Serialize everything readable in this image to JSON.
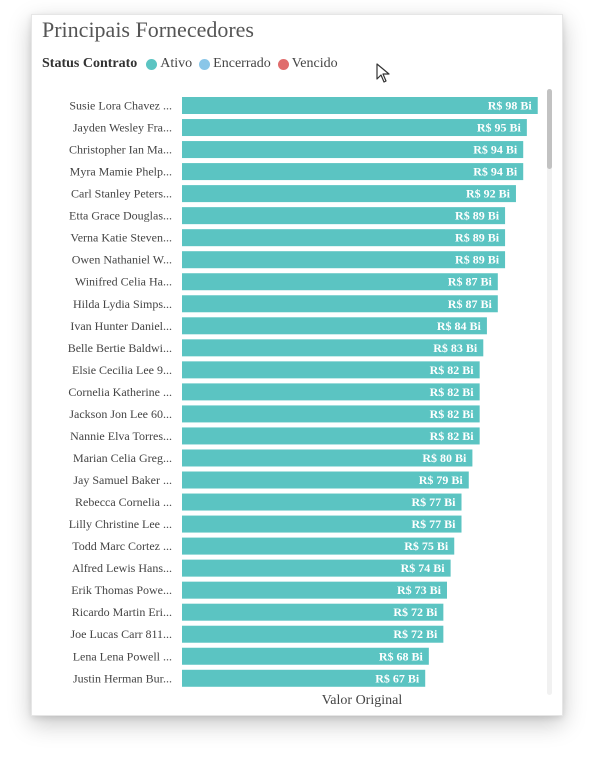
{
  "visual": {
    "title": "Principais Fornecedores",
    "legend": {
      "title": "Status Contrato",
      "items": [
        {
          "label": "Ativo",
          "color": "#5BC4C2"
        },
        {
          "label": "Encerrado",
          "color": "#8AC6E8"
        },
        {
          "label": "Vencido",
          "color": "#E06C6C"
        }
      ]
    }
  },
  "chart_data": {
    "type": "bar",
    "orientation": "horizontal",
    "title": "Principais Fornecedores",
    "xlabel": "Valor Original",
    "ylabel": "",
    "xlim": [
      0,
      100
    ],
    "grid": false,
    "legend_position": "top-left",
    "bar_color": "#5BC4C2",
    "categories": [
      "Susie Lora Chavez ...",
      "Jayden Wesley Fra...",
      "Christopher Ian Ma...",
      "Myra Mamie Phelp...",
      "Carl Stanley Peters...",
      "Etta Grace Douglas...",
      "Verna Katie Steven...",
      "Owen Nathaniel W...",
      "Winifred Celia Ha...",
      "Hilda Lydia Simps...",
      "Ivan Hunter Daniel...",
      "Belle Bertie Baldwi...",
      "Elsie Cecilia Lee 9...",
      "Cornelia Katherine ...",
      "Jackson Jon Lee 60...",
      "Nannie Elva Torres...",
      "Marian Celia Greg...",
      "Jay Samuel Baker ...",
      "Rebecca Cornelia ...",
      "Lilly Christine Lee ...",
      "Todd Marc Cortez ...",
      "Alfred Lewis Hans...",
      "Erik Thomas Powe...",
      "Ricardo Martin Eri...",
      "Joe Lucas Carr 811...",
      "Lena Lena Powell ...",
      "Justin Herman Bur..."
    ],
    "series": [
      {
        "name": "Ativo",
        "values": [
          98,
          95,
          94,
          94,
          92,
          89,
          89,
          89,
          87,
          87,
          84,
          83,
          82,
          82,
          82,
          82,
          80,
          79,
          77,
          77,
          75,
          74,
          73,
          72,
          72,
          68,
          67
        ],
        "data_labels": [
          "R$ 98 Bi",
          "R$ 95 Bi",
          "R$ 94 Bi",
          "R$ 94 Bi",
          "R$ 92 Bi",
          "R$ 89 Bi",
          "R$ 89 Bi",
          "R$ 89 Bi",
          "R$ 87 Bi",
          "R$ 87 Bi",
          "R$ 84 Bi",
          "R$ 83 Bi",
          "R$ 82 Bi",
          "R$ 82 Bi",
          "R$ 82 Bi",
          "R$ 82 Bi",
          "R$ 80 Bi",
          "R$ 79 Bi",
          "R$ 77 Bi",
          "R$ 77 Bi",
          "R$ 75 Bi",
          "R$ 74 Bi",
          "R$ 73 Bi",
          "R$ 72 Bi",
          "R$ 72 Bi",
          "R$ 68 Bi",
          "R$ 67 Bi"
        ]
      }
    ]
  }
}
